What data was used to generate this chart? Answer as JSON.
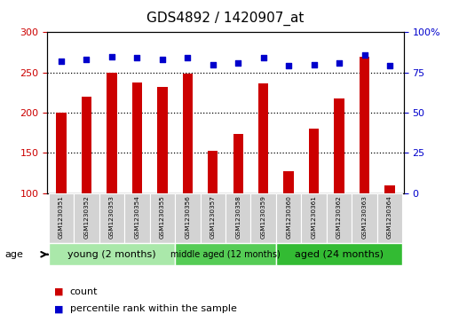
{
  "title": "GDS4892 / 1420907_at",
  "samples": [
    "GSM1230351",
    "GSM1230352",
    "GSM1230353",
    "GSM1230354",
    "GSM1230355",
    "GSM1230356",
    "GSM1230357",
    "GSM1230358",
    "GSM1230359",
    "GSM1230360",
    "GSM1230361",
    "GSM1230362",
    "GSM1230363",
    "GSM1230364"
  ],
  "counts": [
    200,
    220,
    250,
    238,
    232,
    248,
    153,
    174,
    236,
    127,
    180,
    218,
    270,
    110
  ],
  "percentile_ranks": [
    82,
    83,
    85,
    84,
    83,
    84,
    80,
    81,
    84,
    79,
    80,
    81,
    86,
    79
  ],
  "ylim_left": [
    100,
    300
  ],
  "ylim_right": [
    0,
    100
  ],
  "yticks_left": [
    100,
    150,
    200,
    250,
    300
  ],
  "yticks_right": [
    0,
    25,
    50,
    75,
    100
  ],
  "bar_color": "#cc0000",
  "dot_color": "#0000cc",
  "groups": [
    {
      "label": "young (2 months)",
      "start": 0,
      "end": 4,
      "color": "#aae8aa",
      "fontsize": 8
    },
    {
      "label": "middle aged (12 months)",
      "start": 5,
      "end": 8,
      "color": "#55cc55",
      "fontsize": 7
    },
    {
      "label": "aged (24 months)",
      "start": 9,
      "end": 13,
      "color": "#33bb33",
      "fontsize": 8
    }
  ],
  "age_label": "age",
  "legend_count_label": "count",
  "legend_pct_label": "percentile rank within the sample",
  "tick_label_color_left": "#cc0000",
  "tick_label_color_right": "#0000cc",
  "title_fontsize": 11,
  "bar_width": 0.4,
  "dot_size": 22,
  "hgrid_vals": [
    150,
    200,
    250
  ],
  "sample_box_color": "#d3d3d3",
  "sample_font_size": 5.2
}
